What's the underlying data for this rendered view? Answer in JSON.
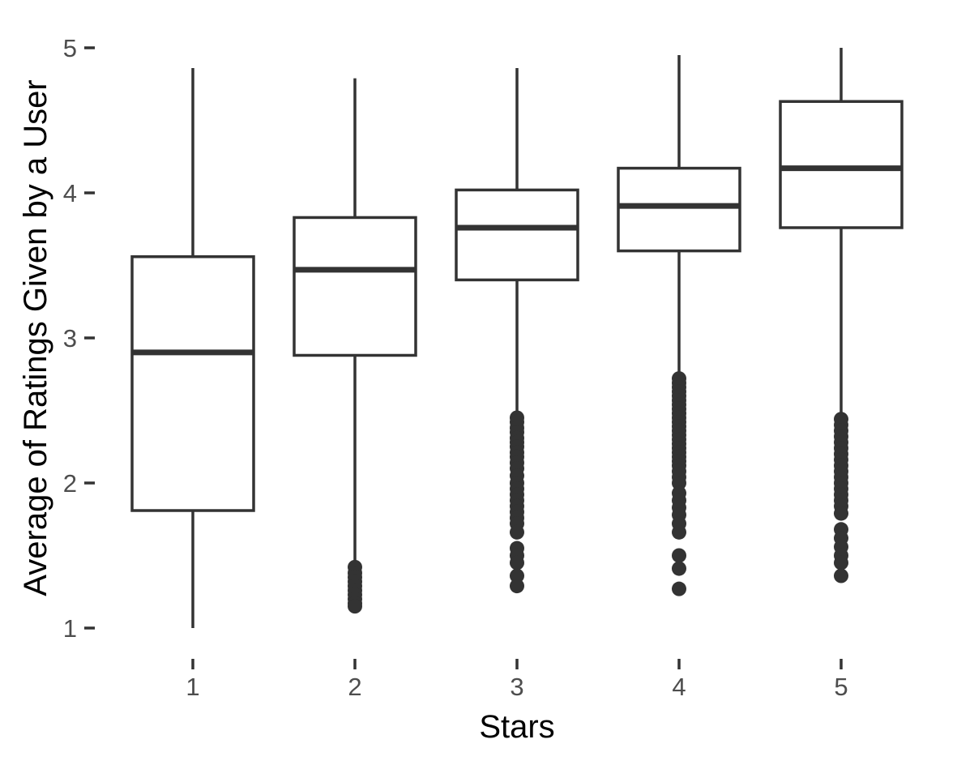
{
  "chart_data": {
    "type": "boxplot",
    "xlabel": "Stars",
    "ylabel": "Average of Ratings Given by a User",
    "categories": [
      "1",
      "2",
      "3",
      "4",
      "5"
    ],
    "y_ticks": [
      1,
      2,
      3,
      4,
      5
    ],
    "ylim": [
      0.9,
      5.15
    ],
    "grid": false,
    "color": "#333333",
    "boxes": [
      {
        "category": "1",
        "whisker_low": 1.0,
        "q1": 1.81,
        "median": 2.9,
        "q3": 3.56,
        "whisker_high": 4.86,
        "outliers": []
      },
      {
        "category": "2",
        "whisker_low": 1.43,
        "q1": 2.88,
        "median": 3.47,
        "q3": 3.83,
        "whisker_high": 4.79,
        "outliers": [
          1.42,
          1.38,
          1.35,
          1.32,
          1.29,
          1.26,
          1.23,
          1.2,
          1.17,
          1.15
        ]
      },
      {
        "category": "3",
        "whisker_low": 2.47,
        "q1": 3.4,
        "median": 3.76,
        "q3": 4.02,
        "whisker_high": 4.86,
        "outliers": [
          2.45,
          2.42,
          2.38,
          2.35,
          2.31,
          2.28,
          2.25,
          2.21,
          2.18,
          2.14,
          2.1,
          2.05,
          2.0,
          1.96,
          1.92,
          1.88,
          1.84,
          1.8,
          1.76,
          1.72,
          1.66,
          1.55,
          1.5,
          1.45,
          1.36,
          1.29
        ]
      },
      {
        "category": "4",
        "whisker_low": 2.75,
        "q1": 3.6,
        "median": 3.91,
        "q3": 4.17,
        "whisker_high": 4.95,
        "outliers": [
          2.72,
          2.69,
          2.66,
          2.63,
          2.6,
          2.57,
          2.54,
          2.51,
          2.48,
          2.45,
          2.42,
          2.39,
          2.36,
          2.33,
          2.3,
          2.27,
          2.24,
          2.21,
          2.18,
          2.15,
          2.12,
          2.08,
          2.04,
          2.0,
          1.93,
          1.88,
          1.83,
          1.78,
          1.72,
          1.66,
          1.5,
          1.41,
          1.27
        ]
      },
      {
        "category": "5",
        "whisker_low": 2.46,
        "q1": 3.76,
        "median": 4.17,
        "q3": 4.63,
        "whisker_high": 5.0,
        "outliers": [
          2.44,
          2.4,
          2.36,
          2.32,
          2.28,
          2.24,
          2.2,
          2.16,
          2.12,
          2.08,
          2.04,
          2.0,
          1.96,
          1.92,
          1.88,
          1.84,
          1.79,
          1.68,
          1.62,
          1.56,
          1.5,
          1.45,
          1.36
        ]
      }
    ]
  }
}
